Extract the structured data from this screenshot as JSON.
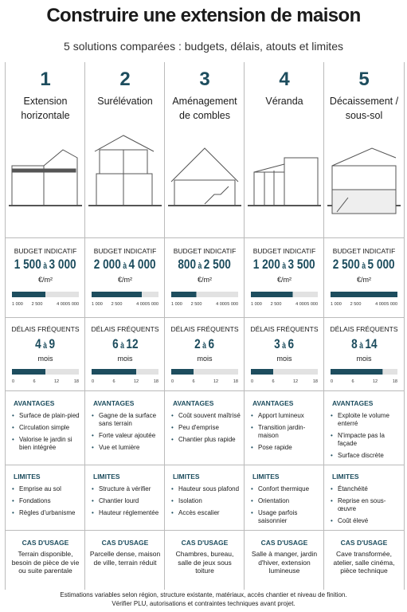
{
  "title": "Construire une extension de maison",
  "subtitle": "5 solutions comparées : budgets, délais, atouts et limites",
  "range_word": "à",
  "budget_label": "BUDGET INDICATIF",
  "budget_unit": "€/m²",
  "budget_scale": {
    "lim": [
      1000,
      5000
    ],
    "ticks": [
      {
        "value": 1000,
        "label": "1 000"
      },
      {
        "value": 2500,
        "label": "2 500"
      },
      {
        "value": 4000,
        "label": "4 000"
      },
      {
        "value": 5000,
        "label": "5 000"
      }
    ]
  },
  "delay_label": "DÉLAIS FRÉQUENTS",
  "delay_unit": "mois",
  "delay_scale": {
    "lim": [
      0,
      18
    ],
    "ticks": [
      0,
      6,
      12,
      18
    ]
  },
  "pros_label": "AVANTAGES",
  "cons_label": "LIMITES",
  "use_label": "CAS D'USAGE",
  "columns": [
    {
      "number": 1,
      "name": [
        "Extension",
        "horizontale"
      ],
      "budget": {
        "min": {
          "value": 1500,
          "label": "1 500"
        },
        "max": {
          "value": 3000,
          "label": "3 000"
        }
      },
      "delay": {
        "min": 4,
        "max": 9
      },
      "pros": [
        "Surface de plain-pied",
        "Circulation simple",
        "Valorise le jardin si bien intégrée"
      ],
      "cons": [
        "Emprise au sol",
        "Fondations",
        "Règles d'urbanisme"
      ],
      "use": "Terrain disponible, besoin de pièce de vie ou suite parentale"
    },
    {
      "number": 2,
      "name": [
        "Surélévation"
      ],
      "budget": {
        "min": {
          "value": 2000,
          "label": "2 000"
        },
        "max": {
          "value": 4000,
          "label": "4 000"
        }
      },
      "delay": {
        "min": 6,
        "max": 12
      },
      "pros": [
        "Gagne de la surface sans terrain",
        "Forte valeur ajoutée",
        "Vue et lumière"
      ],
      "cons": [
        "Structure à vérifier",
        "Chantier lourd",
        "Hauteur réglementée"
      ],
      "use": "Parcelle dense, maison de ville, terrain réduit"
    },
    {
      "number": 3,
      "name": [
        "Aménagement",
        "de combles"
      ],
      "budget": {
        "min": 800,
        "max": {
          "value": 2500,
          "label": "2 500"
        }
      },
      "delay": {
        "min": 2,
        "max": 6
      },
      "pros": [
        "Coût souvent maîtrisé",
        "Peu d'emprise",
        "Chantier plus rapide"
      ],
      "cons": [
        "Hauteur sous plafond",
        "Isolation",
        "Accès escalier"
      ],
      "use": "Chambres, bureau, salle de jeux sous toiture"
    },
    {
      "number": 4,
      "name": [
        "Véranda"
      ],
      "budget": {
        "min": {
          "value": 1200,
          "label": "1 200"
        },
        "max": {
          "value": 3500,
          "label": "3 500"
        }
      },
      "delay": {
        "min": 3,
        "max": 6
      },
      "pros": [
        "Apport lumineux",
        "Transition jardin-maison",
        "Pose rapide"
      ],
      "cons": [
        "Confort thermique",
        "Orientation",
        "Usage parfois saisonnier"
      ],
      "use": "Salle à manger, jardin d'hiver, extension lumineuse"
    },
    {
      "number": 5,
      "name": [
        "Décaissement /",
        "sous-sol"
      ],
      "budget": {
        "min": {
          "value": 2500,
          "label": "2 500"
        },
        "max": {
          "value": 5000,
          "label": "5 000"
        }
      },
      "delay": {
        "min": 8,
        "max": 14
      },
      "pros": [
        "Exploite le volume enterré",
        "N'impacte pas la façade",
        "Surface discrète"
      ],
      "cons": [
        "Étanchéité",
        "Reprise en sous-œuvre",
        "Coût élevé"
      ],
      "use": "Cave transformée, atelier, salle cinéma, pièce technique"
    }
  ],
  "footer": [
    "Estimations variables selon région, structure existante, matériaux, accès chantier et niveau de finition.",
    "Vérifier PLU, autorisations et contraintes techniques avant projet."
  ]
}
